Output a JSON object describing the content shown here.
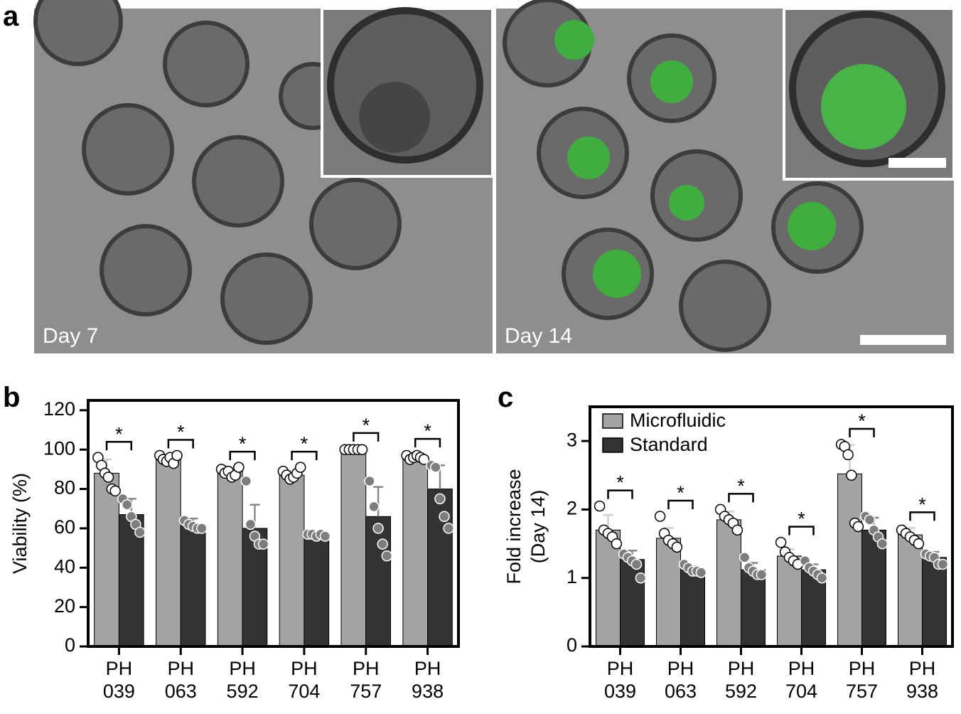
{
  "figure": {
    "panel_labels": [
      "a",
      "b",
      "c"
    ],
    "image_labels": [
      "Day 7",
      "Day 14"
    ]
  },
  "chart_data": [
    {
      "type": "bar",
      "ylabel": [
        "Viability (%)"
      ],
      "categories": [
        "PH 039",
        "PH 063",
        "PH 592",
        "PH 704",
        "PH 757",
        "PH 938"
      ],
      "ylim": [
        0,
        125
      ],
      "yticks": [
        0,
        20,
        40,
        60,
        80,
        100,
        120
      ],
      "significance": [
        "*",
        "*",
        "*",
        "*",
        "*",
        "*"
      ],
      "series": [
        {
          "color": "#a3a3a3",
          "values": [
            88,
            95,
            89,
            87,
            100,
            96
          ],
          "errors": [
            7,
            2,
            2,
            2,
            0.5,
            1.5
          ],
          "points": [
            [
              96,
              92,
              88,
              86,
              80,
              79
            ],
            [
              97,
              95,
              94,
              96,
              93,
              97
            ],
            [
              90,
              88,
              89,
              86,
              87,
              91
            ],
            [
              89,
              87,
              85,
              86,
              88,
              91
            ],
            [
              100,
              100,
              100,
              100,
              100
            ],
            [
              97,
              95,
              96,
              97,
              96,
              95
            ]
          ]
        },
        {
          "color": "#333333",
          "values": [
            67,
            62,
            60,
            57,
            66,
            80
          ],
          "errors": [
            8,
            3,
            12,
            1,
            15,
            12
          ],
          "points": [
            [
              75,
              72,
              66,
              62,
              58
            ],
            [
              64,
              62,
              61,
              60,
              60
            ],
            [
              84,
              62,
              56,
              52,
              52
            ],
            [
              57,
              57,
              56,
              57,
              56
            ],
            [
              84,
              71,
              60,
              52,
              46
            ],
            [
              92,
              91,
              75,
              66,
              60
            ]
          ]
        }
      ]
    },
    {
      "type": "bar",
      "ylabel": [
        "Fold increase",
        "(Day 14)"
      ],
      "categories": [
        "PH 039",
        "PH 063",
        "PH 592",
        "PH 704",
        "PH 757",
        "PH 938"
      ],
      "ylim": [
        0,
        3.5
      ],
      "yticks": [
        0,
        1,
        2,
        3
      ],
      "legend": "upper left",
      "significance": [
        "*",
        "*",
        "*",
        "*",
        "*",
        "*"
      ],
      "series": [
        {
          "name": "Microfluidic",
          "color": "#a3a3a3",
          "values": [
            1.7,
            1.58,
            1.85,
            1.32,
            2.52,
            1.63
          ],
          "errors": [
            0.22,
            0.15,
            0.12,
            0.1,
            0.42,
            0.1
          ],
          "points": [
            [
              2.05,
              1.7,
              1.65,
              1.6,
              1.5
            ],
            [
              1.9,
              1.65,
              1.55,
              1.5,
              1.45
            ],
            [
              2.0,
              1.9,
              1.85,
              1.8,
              1.7
            ],
            [
              1.52,
              1.38,
              1.3,
              1.25,
              1.2
            ],
            [
              2.95,
              2.92,
              2.8,
              2.5,
              1.8,
              1.75
            ],
            [
              1.7,
              1.65,
              1.6,
              1.55,
              1.5
            ]
          ]
        },
        {
          "name": "Standard",
          "color": "#333333",
          "values": [
            1.27,
            1.12,
            1.12,
            1.12,
            1.7,
            1.3
          ],
          "errors": [
            0.13,
            0.05,
            0.1,
            0.08,
            0.18,
            0.08
          ],
          "points": [
            [
              1.35,
              1.3,
              1.25,
              1.2,
              1.0
            ],
            [
              1.2,
              1.15,
              1.1,
              1.1,
              1.08
            ],
            [
              1.3,
              1.15,
              1.1,
              1.05,
              1.05
            ],
            [
              1.25,
              1.15,
              1.1,
              1.05,
              1.0
            ],
            [
              1.9,
              1.85,
              1.7,
              1.6,
              1.5
            ],
            [
              1.35,
              1.32,
              1.3,
              1.2,
              1.2
            ]
          ]
        }
      ]
    }
  ]
}
